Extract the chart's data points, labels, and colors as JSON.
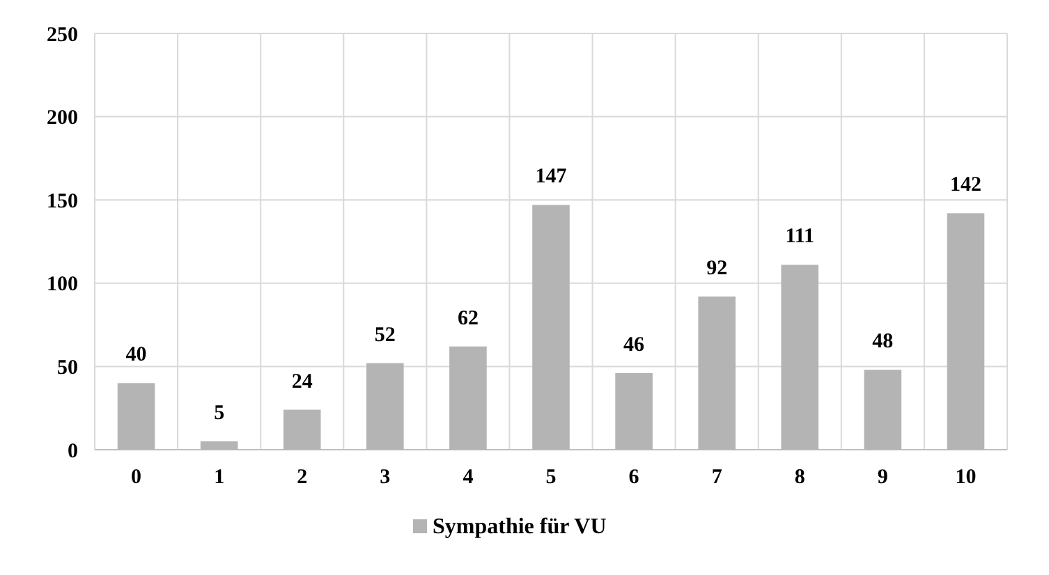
{
  "chart_data": {
    "type": "bar",
    "categories": [
      "0",
      "1",
      "2",
      "3",
      "4",
      "5",
      "6",
      "7",
      "8",
      "9",
      "10"
    ],
    "series": [
      {
        "name": "Sympathie für VU",
        "color": "#b4b4b4",
        "values": [
          40,
          5,
          24,
          52,
          62,
          147,
          46,
          92,
          111,
          48,
          142
        ]
      }
    ],
    "ylim": [
      0,
      250
    ],
    "yticks": [
      0,
      50,
      100,
      150,
      200,
      250
    ],
    "grid": true,
    "data_labels": true,
    "legend": "bottom"
  }
}
